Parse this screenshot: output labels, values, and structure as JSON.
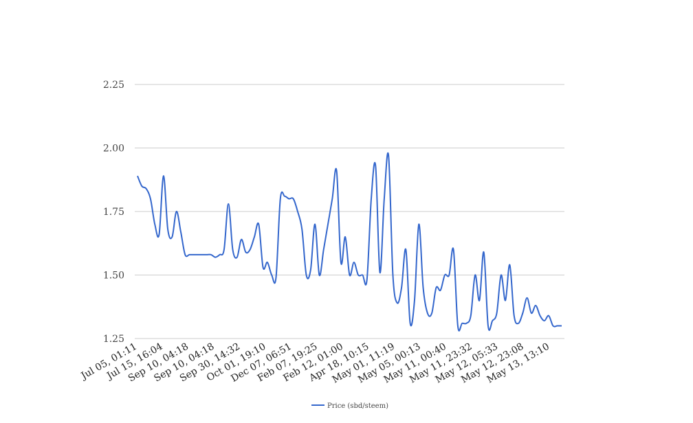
{
  "chart_data": {
    "type": "line",
    "title": "",
    "xlabel": "",
    "ylabel": "",
    "ylim": [
      1.25,
      2.25
    ],
    "y_ticks": [
      "1.25",
      "1.50",
      "1.75",
      "2.00",
      "2.25"
    ],
    "grid": "horizontal",
    "legend_position": "bottom",
    "x_tick_labels": [
      "Jul 05, 01:11",
      "Jul 15, 16:04",
      "Sep 10, 04:18",
      "Sep 10, 04:18",
      "Sep 30, 14:32",
      "Oct 01, 19:10",
      "Dec 07, 06:51",
      "Feb 07, 19:25",
      "Feb 12, 01:00",
      "Apr 18, 10:15",
      "May 01, 11:19",
      "May 05, 00:13",
      "May 11, 00:40",
      "May 11, 23:32",
      "May 12, 05:33",
      "May 12, 23:08",
      "May 13, 13:10"
    ],
    "series": [
      {
        "name": "Price (sbd/steem)",
        "color": "#3366cc",
        "values": [
          1.89,
          1.85,
          1.84,
          1.8,
          1.7,
          1.66,
          1.89,
          1.68,
          1.65,
          1.75,
          1.67,
          1.58,
          1.58,
          1.58,
          1.58,
          1.58,
          1.58,
          1.58,
          1.57,
          1.58,
          1.6,
          1.78,
          1.6,
          1.57,
          1.64,
          1.59,
          1.6,
          1.65,
          1.7,
          1.53,
          1.55,
          1.5,
          1.49,
          1.8,
          1.81,
          1.8,
          1.8,
          1.75,
          1.68,
          1.5,
          1.52,
          1.7,
          1.5,
          1.6,
          1.7,
          1.8,
          1.91,
          1.55,
          1.65,
          1.5,
          1.55,
          1.5,
          1.5,
          1.48,
          1.8,
          1.93,
          1.51,
          1.8,
          1.97,
          1.5,
          1.39,
          1.45,
          1.6,
          1.31,
          1.4,
          1.7,
          1.45,
          1.35,
          1.35,
          1.45,
          1.44,
          1.5,
          1.5,
          1.6,
          1.3,
          1.31,
          1.31,
          1.34,
          1.5,
          1.4,
          1.59,
          1.3,
          1.32,
          1.35,
          1.5,
          1.4,
          1.54,
          1.34,
          1.31,
          1.35,
          1.41,
          1.35,
          1.38,
          1.34,
          1.32,
          1.34,
          1.3,
          1.3,
          1.3
        ]
      }
    ]
  }
}
